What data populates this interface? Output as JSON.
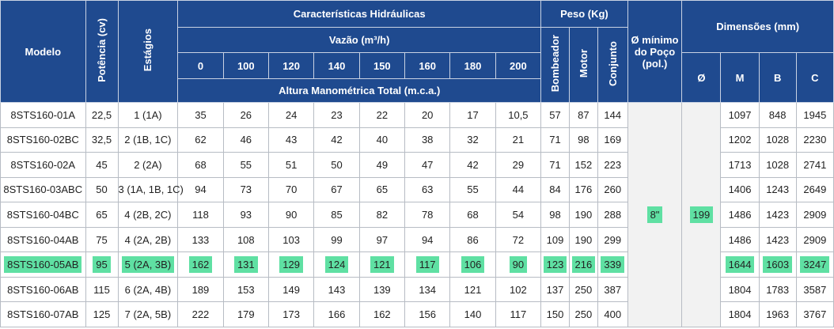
{
  "headers": {
    "modelo": "Modelo",
    "potencia": "Potência (cv)",
    "estagios": "Estágios",
    "caracteristicas": "Características Hidráulicas",
    "vazao": "Vazão (m³/h)",
    "flows": [
      "0",
      "100",
      "120",
      "140",
      "150",
      "160",
      "180",
      "200"
    ],
    "altura": "Altura Manométrica Total (m.c.a.)",
    "peso": "Peso (Kg)",
    "bombeador": "Bombeador",
    "motor": "Motor",
    "conjunto": "Conjunto",
    "poco": "Ø mínimo do Poço (pol.)",
    "dimensoes": "Dimensões (mm)",
    "diam": "Ø",
    "m": "M",
    "b": "B",
    "c": "C"
  },
  "merged": {
    "poco": "8\"",
    "diam": "199"
  },
  "rows": [
    {
      "modelo": "8STS160-01A",
      "potencia": "22,5",
      "estagios": "1 (1A)",
      "alturas": [
        "35",
        "26",
        "24",
        "23",
        "22",
        "20",
        "17",
        "10,5"
      ],
      "bombeador": "57",
      "motor": "87",
      "conjunto": "144",
      "m": "1097",
      "b": "848",
      "c": "1945",
      "highlight": false
    },
    {
      "modelo": "8STS160-02BC",
      "potencia": "32,5",
      "estagios": "2 (1B, 1C)",
      "alturas": [
        "62",
        "46",
        "43",
        "42",
        "40",
        "38",
        "32",
        "21"
      ],
      "bombeador": "71",
      "motor": "98",
      "conjunto": "169",
      "m": "1202",
      "b": "1028",
      "c": "2230",
      "highlight": false
    },
    {
      "modelo": "8STS160-02A",
      "potencia": "45",
      "estagios": "2 (2A)",
      "alturas": [
        "68",
        "55",
        "51",
        "50",
        "49",
        "47",
        "42",
        "29"
      ],
      "bombeador": "71",
      "motor": "152",
      "conjunto": "223",
      "m": "1713",
      "b": "1028",
      "c": "2741",
      "highlight": false
    },
    {
      "modelo": "8STS160-03ABC",
      "potencia": "50",
      "estagios": "3 (1A, 1B, 1C)",
      "alturas": [
        "94",
        "73",
        "70",
        "67",
        "65",
        "63",
        "55",
        "44"
      ],
      "bombeador": "84",
      "motor": "176",
      "conjunto": "260",
      "m": "1406",
      "b": "1243",
      "c": "2649",
      "highlight": false
    },
    {
      "modelo": "8STS160-04BC",
      "potencia": "65",
      "estagios": "4 (2B, 2C)",
      "alturas": [
        "118",
        "93",
        "90",
        "85",
        "82",
        "78",
        "68",
        "54"
      ],
      "bombeador": "98",
      "motor": "190",
      "conjunto": "288",
      "m": "1486",
      "b": "1423",
      "c": "2909",
      "highlight": false
    },
    {
      "modelo": "8STS160-04AB",
      "potencia": "75",
      "estagios": "4 (2A, 2B)",
      "alturas": [
        "133",
        "108",
        "103",
        "99",
        "97",
        "94",
        "86",
        "72"
      ],
      "bombeador": "109",
      "motor": "190",
      "conjunto": "299",
      "m": "1486",
      "b": "1423",
      "c": "2909",
      "highlight": false
    },
    {
      "modelo": "8STS160-05AB",
      "potencia": "95",
      "estagios": "5 (2A, 3B)",
      "alturas": [
        "162",
        "131",
        "129",
        "124",
        "121",
        "117",
        "106",
        "90"
      ],
      "bombeador": "123",
      "motor": "216",
      "conjunto": "339",
      "m": "1644",
      "b": "1603",
      "c": "3247",
      "highlight": true
    },
    {
      "modelo": "8STS160-06AB",
      "potencia": "115",
      "estagios": "6 (2A, 4B)",
      "alturas": [
        "189",
        "153",
        "149",
        "143",
        "139",
        "134",
        "121",
        "102"
      ],
      "bombeador": "137",
      "motor": "250",
      "conjunto": "387",
      "m": "1804",
      "b": "1783",
      "c": "3587",
      "highlight": false
    },
    {
      "modelo": "8STS160-07AB",
      "potencia": "125",
      "estagios": "7 (2A, 5B)",
      "alturas": [
        "222",
        "179",
        "173",
        "166",
        "162",
        "156",
        "140",
        "117"
      ],
      "bombeador": "150",
      "motor": "250",
      "conjunto": "400",
      "m": "1804",
      "b": "1963",
      "c": "3767",
      "highlight": false
    }
  ],
  "colors": {
    "header_bg": "#1f4a8f",
    "highlight": "#5fe0a3",
    "merged_bg": "#f2f2f2"
  }
}
